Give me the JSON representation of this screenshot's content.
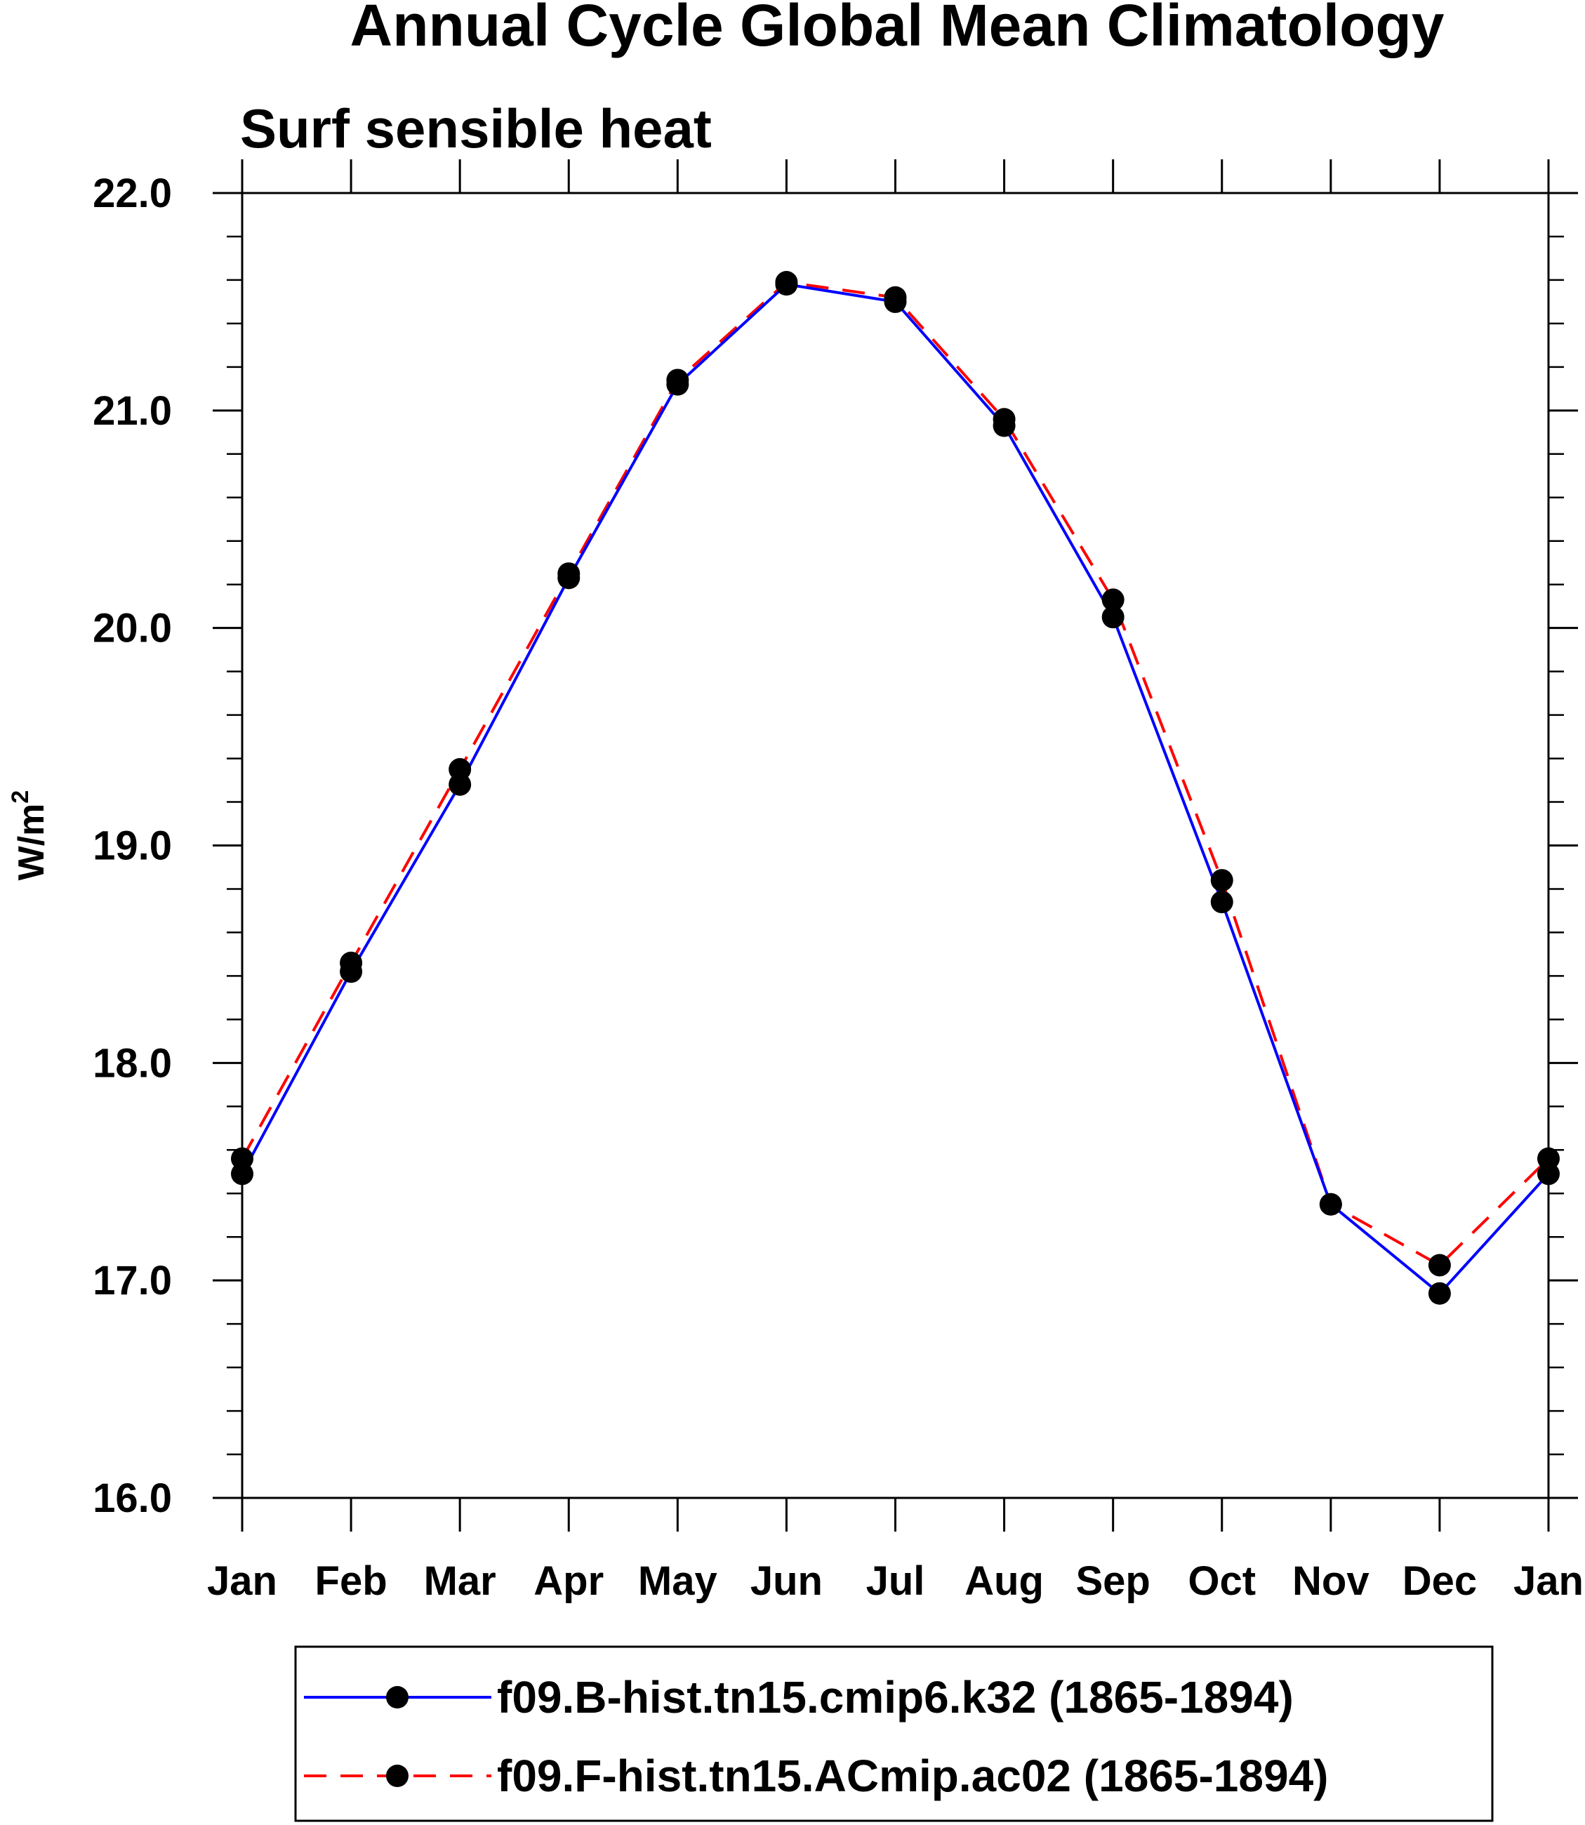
{
  "chart_data": {
    "type": "line",
    "title": "Annual Cycle Global Mean Climatology",
    "subtitle": "Surf sensible heat",
    "ylabel": "W/m",
    "ylabel_superscript": "2",
    "xlabel": "",
    "ylim": [
      16.0,
      22.0
    ],
    "y_major_ticks": [
      16.0,
      17.0,
      18.0,
      19.0,
      20.0,
      21.0,
      22.0
    ],
    "y_tick_labels": [
      "16.0",
      "17.0",
      "18.0",
      "19.0",
      "20.0",
      "21.0",
      "22.0"
    ],
    "y_minor_step": 0.2,
    "categories": [
      "Jan",
      "Feb",
      "Mar",
      "Apr",
      "May",
      "Jun",
      "Jul",
      "Aug",
      "Sep",
      "Oct",
      "Nov",
      "Dec",
      "Jan"
    ],
    "grid": false,
    "legend_position": "bottom",
    "series": [
      {
        "name": "f09.B-hist.tn15.cmip6.k32 (1865-1894)",
        "color": "#0000ff",
        "line_style": "solid",
        "marker": "filled-circle",
        "values": [
          17.49,
          18.42,
          19.28,
          20.23,
          21.12,
          21.58,
          21.5,
          20.93,
          20.05,
          18.74,
          17.35,
          16.94,
          17.49
        ]
      },
      {
        "name": "f09.F-hist.tn15.ACmip.ac02 (1865-1894)",
        "color": "#ff0000",
        "line_style": "dashed",
        "marker": "filled-circle",
        "values": [
          17.56,
          18.46,
          19.35,
          20.25,
          21.14,
          21.59,
          21.52,
          20.96,
          20.13,
          18.84,
          17.35,
          17.07,
          17.56
        ]
      }
    ]
  }
}
